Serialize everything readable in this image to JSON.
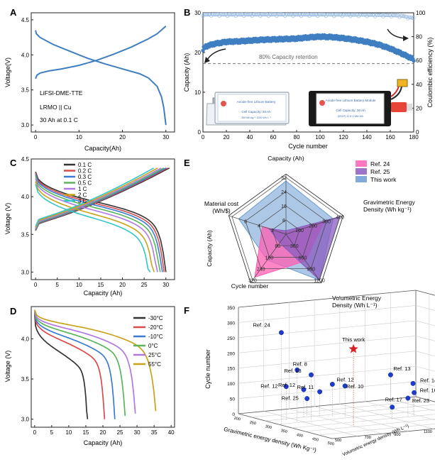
{
  "panels": {
    "A": {
      "letter": "A",
      "notes": [
        "LiFSI-DME-TTE",
        "LRMO || Cu",
        "30 Ah at 0.1 C"
      ]
    },
    "B": {
      "letter": "B",
      "retention_label": "80% Capacity retention",
      "cell_label": "Anode-free Lithium Battery",
      "cell_capacity": "Cell Capacity: 30 Ah",
      "cell_spec": "350 Wh kg⁻¹   1200 Wh L⁻¹",
      "module_label": "Anode-free Lithium Battery Module",
      "module_capacity": "Cell Capacity: 30 Ah",
      "module_spec": "(6S1P)   22.8 V   684 Wh"
    },
    "C": {
      "letter": "C"
    },
    "D": {
      "letter": "D"
    },
    "E": {
      "letter": "E"
    },
    "F": {
      "letter": "F",
      "star_label": "This work"
    }
  },
  "chart_data": [
    {
      "id": "A",
      "type": "line",
      "xlabel": "Capacity(Ah)",
      "ylabel": "Voltage(V)",
      "xlim": [
        -1,
        32
      ],
      "ylim": [
        2.9,
        4.6
      ],
      "xticks": [
        0,
        10,
        20,
        30
      ],
      "yticks": [
        3.0,
        3.5,
        4.0,
        4.5
      ],
      "series": [
        {
          "name": "charge",
          "x": [
            0,
            0.3,
            1,
            3,
            6,
            10,
            14,
            18,
            22,
            26,
            28,
            30
          ],
          "y": [
            3.66,
            3.71,
            3.74,
            3.77,
            3.8,
            3.85,
            3.92,
            4.01,
            4.11,
            4.23,
            4.3,
            4.41
          ]
        },
        {
          "name": "discharge",
          "x": [
            0,
            0.2,
            1,
            4,
            8,
            12,
            16,
            20,
            24,
            26,
            28,
            29,
            29.5,
            30
          ],
          "y": [
            4.35,
            4.3,
            4.25,
            4.15,
            4.05,
            3.95,
            3.87,
            3.8,
            3.73,
            3.67,
            3.55,
            3.4,
            3.25,
            3.0
          ]
        }
      ]
    },
    {
      "id": "B",
      "type": "scatter",
      "xlabel": "Cycle number",
      "ylabel": "Capacity (Ah)",
      "y2label": "Coulombic efficiency (%)",
      "xlim": [
        0,
        180
      ],
      "ylim": [
        0,
        30
      ],
      "y2lim": [
        0,
        100
      ],
      "xticks": [
        0,
        20,
        40,
        60,
        80,
        100,
        120,
        140,
        160,
        180
      ],
      "yticks": [
        0,
        10,
        20,
        30
      ],
      "y2ticks": [
        0,
        20,
        40,
        60,
        80,
        100
      ],
      "retention_y": 17.2,
      "series": [
        {
          "name": "capacity",
          "x": [
            0,
            1,
            5,
            10,
            20,
            30,
            40,
            50,
            60,
            70,
            80,
            90,
            100,
            110,
            120,
            130,
            140,
            150,
            160,
            170,
            180
          ],
          "y": [
            20.5,
            21.3,
            21.8,
            22.2,
            22.7,
            22.8,
            23.0,
            23.2,
            23.3,
            23.4,
            23.5,
            23.8,
            24.0,
            23.9,
            23.6,
            23.2,
            22.7,
            22.0,
            21.0,
            19.7,
            18.3
          ]
        },
        {
          "name": "coulombic efficiency",
          "axis": "y2",
          "x": [
            0,
            20,
            40,
            60,
            80,
            100,
            120,
            140,
            160,
            170,
            175,
            180
          ],
          "y": [
            98.5,
            98.6,
            98.6,
            98.6,
            98.5,
            98.5,
            98.4,
            98.3,
            98.0,
            97.5,
            96.5,
            95.5
          ]
        }
      ]
    },
    {
      "id": "C",
      "type": "line",
      "xlabel": "Capacity (Ah)",
      "ylabel": "Voltage (V)",
      "xlim": [
        -1,
        32
      ],
      "ylim": [
        2.9,
        4.5
      ],
      "xticks": [
        0,
        5,
        10,
        15,
        20,
        25,
        30
      ],
      "yticks": [
        3.0,
        3.5,
        4.0,
        4.5
      ],
      "colors": [
        "#333333",
        "#d94a4a",
        "#3a7bd5",
        "#5ab55a",
        "#b178e0",
        "#c9a21a",
        "#35c6c6"
      ],
      "series": [
        {
          "name": "0.1 C",
          "end": 30.0,
          "top": 4.4,
          "drop": 0.0,
          "minv": 3.7
        },
        {
          "name": "0.2 C",
          "end": 29.6,
          "top": 4.4,
          "drop": 0.05,
          "minv": 3.68
        },
        {
          "name": "0.3 C",
          "end": 29.2,
          "top": 4.4,
          "drop": 0.1,
          "minv": 3.66
        },
        {
          "name": "0.5 C",
          "end": 28.7,
          "top": 4.4,
          "drop": 0.17,
          "minv": 3.64
        },
        {
          "name": "1 C",
          "end": 28.1,
          "top": 4.4,
          "drop": 0.25,
          "minv": 3.62
        },
        {
          "name": "2 C",
          "end": 27.3,
          "top": 4.4,
          "drop": 0.36,
          "minv": 3.6
        },
        {
          "name": "3 C",
          "end": 26.4,
          "top": 4.4,
          "drop": 0.47,
          "minv": 3.58
        }
      ]
    },
    {
      "id": "D",
      "type": "line",
      "xlabel": "Capacity (Ah)",
      "ylabel": "Voltage (V)",
      "xlim": [
        -1,
        41
      ],
      "ylim": [
        2.9,
        4.4
      ],
      "xticks": [
        0,
        5,
        10,
        15,
        20,
        25,
        30,
        35,
        40
      ],
      "yticks": [
        3.0,
        3.5,
        4.0
      ],
      "colors": [
        "#333333",
        "#d94a4a",
        "#3a7bd5",
        "#5ab55a",
        "#b178e0",
        "#c9a21a"
      ],
      "series": [
        {
          "name": "-30°C",
          "end": 15.5,
          "start": 4.3,
          "plateau": 3.72,
          "knee": 3.55
        },
        {
          "name": "-20°C",
          "end": 20.5,
          "start": 4.32,
          "plateau": 3.86,
          "knee": 3.65
        },
        {
          "name": "-10°C",
          "end": 23.5,
          "start": 4.33,
          "plateau": 3.92,
          "knee": 3.7
        },
        {
          "name": "0°C",
          "end": 26.5,
          "start": 4.34,
          "plateau": 3.98,
          "knee": 3.74
        },
        {
          "name": "25°C",
          "end": 29.5,
          "start": 4.35,
          "plateau": 4.03,
          "knee": 3.77
        },
        {
          "name": "55°C",
          "end": 35.5,
          "start": 4.36,
          "plateau": 4.08,
          "knee": 3.8
        }
      ]
    },
    {
      "id": "E",
      "type": "radar",
      "axes": [
        {
          "label": "Capacity (Ah)",
          "ticks": [
            "8",
            "16",
            "24",
            "32"
          ],
          "max": 32
        },
        {
          "label": "Gravimetric Energy Density (Wh kg⁻¹)",
          "ticks": [
            "100",
            "200",
            "300",
            "400"
          ],
          "max": 400
        },
        {
          "label": "Volumetric Energy Density (Wh L⁻¹)",
          "ticks": [
            "300",
            "600",
            "900",
            "1200"
          ],
          "max": 1200
        },
        {
          "label": "Cycle number",
          "ticks": [
            "80",
            "160",
            "240",
            "320"
          ],
          "max": 320
        },
        {
          "label": "Material cost (Wh/$)",
          "ticks": [
            "2",
            "4",
            "6"
          ],
          "max": 8
        }
      ],
      "series": [
        {
          "name": "Ref. 24",
          "color": "#ff5fb3",
          "values": [
            1,
            280,
            700,
            300,
            3.5
          ]
        },
        {
          "name": "Ref. 25",
          "color": "#8a5bbf",
          "values": [
            2,
            400,
            1200,
            60,
            2.5
          ]
        },
        {
          "name": "This work",
          "color": "#6a9bd2",
          "values": [
            30,
            350,
            1200,
            180,
            7
          ]
        }
      ]
    },
    {
      "id": "F",
      "type": "scatter",
      "xlabel": "Gravimetric energy density (Wh Kg⁻¹)",
      "ylabel": "Cycle number",
      "zlabel": "Volumetric energy density (Wh L⁻¹)",
      "yticks": [
        "0",
        "50",
        "100",
        "150",
        "200",
        "250",
        "300",
        "350"
      ],
      "xticks": [
        "200",
        "250",
        "300",
        "350",
        "400",
        "450",
        "500"
      ],
      "zticks": [
        "500",
        "700",
        "900",
        "1100",
        "1300",
        "1500",
        "1700"
      ],
      "points": [
        {
          "label": "Ref. 24",
          "cycles": 300
        },
        {
          "label": "Ref. 8",
          "cycles": 170
        },
        {
          "label": "Ref. 13",
          "cycles": 145
        },
        {
          "label": "Ref. 12",
          "cycles": 110
        },
        {
          "label": "Ref. 12",
          "cycles": 105
        },
        {
          "label": "Ref. 10",
          "cycles": 100
        },
        {
          "label": "Ref. 12",
          "cycles": 90
        },
        {
          "label": "Ref. 11",
          "cycles": 80
        },
        {
          "label": "Ref. 25",
          "cycles": 55
        },
        {
          "label": "Ref. 13",
          "cycles": 130
        },
        {
          "label": "Ref. 14",
          "cycles": 100
        },
        {
          "label": "Ref. 16",
          "cycles": 75
        },
        {
          "label": "Ref. 23",
          "cycles": 60
        },
        {
          "label": "Ref. 17",
          "cycles": 40
        }
      ]
    }
  ]
}
